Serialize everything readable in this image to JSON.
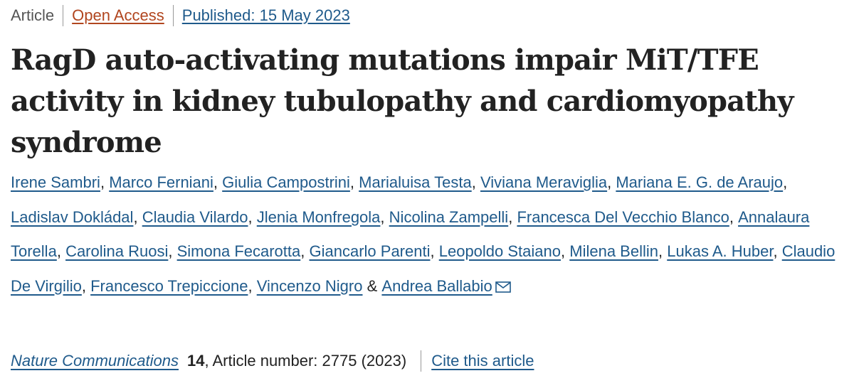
{
  "header": {
    "article_type": "Article",
    "access": "Open Access",
    "published": "Published: 15 May 2023"
  },
  "title": "RagD auto-activating mutations impair MiT/TFE activity in kidney tubulopathy and cardiomyopathy syndrome",
  "authors": [
    "Irene Sambri",
    "Marco Ferniani",
    "Giulia Campostrini",
    "Marialuisa Testa",
    "Viviana Meraviglia",
    "Mariana E. G. de Araujo",
    "Ladislav Dokládal",
    "Claudia Vilardo",
    "Jlenia Monfregola",
    "Nicolina Zampelli",
    "Francesca Del Vecchio Blanco",
    "Annalaura Torella",
    "Carolina Ruosi",
    "Simona Fecarotta",
    "Giancarlo Parenti",
    "Leopoldo Staiano",
    "Milena Bellin",
    "Lukas A. Huber",
    "Claudio De Virgilio",
    "Francesco Trepiccione",
    "Vincenzo Nigro",
    "Andrea Ballabio"
  ],
  "author_separators": {
    "comma": ",",
    "and": "&"
  },
  "corresponding_icon": "mail-icon",
  "citation": {
    "journal": "Nature Communications",
    "volume": "14",
    "article_number": ", Article number: 2775 (2023)",
    "cite_label": "Cite this article"
  },
  "colors": {
    "link": "#1f5a8b",
    "open_access": "#b1461f",
    "text": "#222222"
  }
}
